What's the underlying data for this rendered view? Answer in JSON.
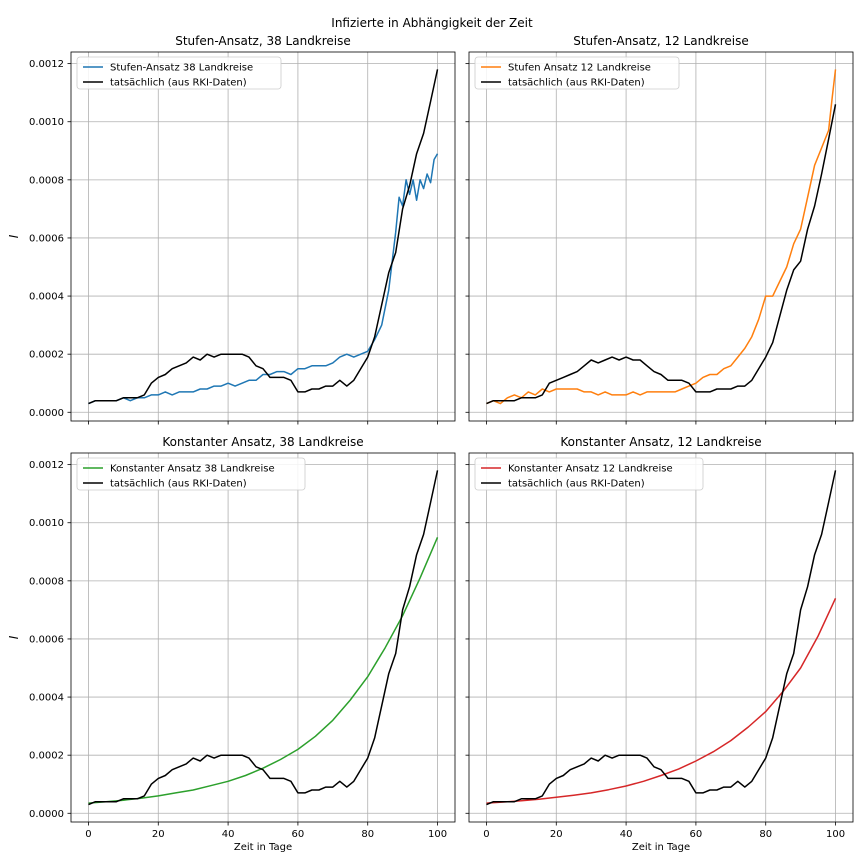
{
  "figure": {
    "suptitle": "Infizierte in Abhängigkeit der Zeit",
    "ylabel": "I",
    "xlabel": "Zeit in Tage"
  },
  "colors": {
    "blue": "#1f77b4",
    "orange": "#ff7f0e",
    "green": "#2ca02c",
    "red": "#d62728",
    "actual": "#000000"
  },
  "chart_data": [
    {
      "type": "line",
      "title": "Stufen-Ansatz, 38 Landkreise",
      "xlabel": "",
      "ylabel": "I",
      "xlim": [
        -5,
        105
      ],
      "ylim": [
        -3e-05,
        0.00124
      ],
      "xticks": [
        0,
        20,
        40,
        60,
        80,
        100
      ],
      "xtick_labels": [],
      "yticks": [
        0,
        0.0002,
        0.0004,
        0.0006,
        0.0008,
        0.001,
        0.0012
      ],
      "ytick_labels": [
        "0.0000",
        "0.0002",
        "0.0004",
        "0.0006",
        "0.0008",
        "0.0010",
        "0.0012"
      ],
      "grid": true,
      "legend": "top-left",
      "series": [
        {
          "name": "Stufen-Ansatz 38 Landkreise",
          "color": "#1f77b4",
          "x": [
            0,
            2,
            4,
            6,
            8,
            10,
            12,
            14,
            16,
            18,
            20,
            22,
            24,
            26,
            28,
            30,
            32,
            34,
            36,
            38,
            40,
            42,
            44,
            46,
            48,
            50,
            52,
            54,
            56,
            58,
            60,
            62,
            64,
            66,
            68,
            70,
            72,
            74,
            76,
            78,
            80,
            82,
            84,
            86,
            88,
            89,
            90,
            91,
            92,
            93,
            94,
            95,
            96,
            97,
            98,
            99,
            100
          ],
          "y": [
            3e-05,
            4e-05,
            4e-05,
            4e-05,
            4e-05,
            5e-05,
            4e-05,
            5e-05,
            5e-05,
            6e-05,
            6e-05,
            7e-05,
            6e-05,
            7e-05,
            7e-05,
            7e-05,
            8e-05,
            8e-05,
            9e-05,
            9e-05,
            0.0001,
            9e-05,
            0.0001,
            0.00011,
            0.00011,
            0.00013,
            0.00013,
            0.00014,
            0.00014,
            0.00013,
            0.00015,
            0.00015,
            0.00016,
            0.00016,
            0.00016,
            0.00017,
            0.00019,
            0.0002,
            0.00019,
            0.0002,
            0.00021,
            0.00025,
            0.0003,
            0.00042,
            0.00062,
            0.00074,
            0.00071,
            0.0008,
            0.00075,
            0.0008,
            0.00073,
            0.0008,
            0.00077,
            0.00082,
            0.00079,
            0.00087,
            0.00089
          ]
        },
        {
          "name": "tatsächlich (aus RKI-Daten)",
          "color": "#000000",
          "x": [
            0,
            2,
            4,
            6,
            8,
            10,
            12,
            14,
            16,
            18,
            20,
            22,
            24,
            26,
            28,
            30,
            32,
            34,
            36,
            38,
            40,
            42,
            44,
            46,
            48,
            50,
            52,
            54,
            56,
            58,
            60,
            62,
            64,
            66,
            68,
            70,
            72,
            74,
            76,
            78,
            80,
            82,
            84,
            86,
            88,
            90,
            92,
            94,
            96,
            98,
            100
          ],
          "y": [
            3e-05,
            4e-05,
            4e-05,
            4e-05,
            4e-05,
            5e-05,
            5e-05,
            5e-05,
            6e-05,
            0.0001,
            0.00012,
            0.00013,
            0.00015,
            0.00016,
            0.00017,
            0.00019,
            0.00018,
            0.0002,
            0.00019,
            0.0002,
            0.0002,
            0.0002,
            0.0002,
            0.00019,
            0.00016,
            0.00015,
            0.00012,
            0.00012,
            0.00012,
            0.00011,
            7e-05,
            7e-05,
            8e-05,
            8e-05,
            9e-05,
            9e-05,
            0.00011,
            9e-05,
            0.00011,
            0.00015,
            0.00019,
            0.00026,
            0.00037,
            0.00048,
            0.00055,
            0.0007,
            0.00078,
            0.00089,
            0.00096,
            0.00107,
            0.00118
          ]
        }
      ]
    },
    {
      "type": "line",
      "title": "Stufen-Ansatz, 12 Landkreise",
      "xlabel": "",
      "ylabel": "",
      "xlim": [
        -5,
        105
      ],
      "ylim": [
        -3e-05,
        0.00124
      ],
      "xticks": [
        0,
        20,
        40,
        60,
        80,
        100
      ],
      "xtick_labels": [],
      "yticks": [
        0,
        0.0002,
        0.0004,
        0.0006,
        0.0008,
        0.001,
        0.0012
      ],
      "ytick_labels": [],
      "grid": true,
      "legend": "top-left",
      "series": [
        {
          "name": "Stufen Ansatz 12 Landkreise",
          "color": "#ff7f0e",
          "x": [
            0,
            2,
            4,
            6,
            8,
            10,
            12,
            14,
            16,
            18,
            20,
            22,
            24,
            26,
            28,
            30,
            32,
            34,
            36,
            38,
            40,
            42,
            44,
            46,
            48,
            50,
            52,
            54,
            56,
            58,
            60,
            62,
            64,
            66,
            68,
            70,
            72,
            74,
            76,
            78,
            80,
            82,
            84,
            86,
            88,
            90,
            92,
            94,
            96,
            98,
            99,
            100
          ],
          "y": [
            3e-05,
            4e-05,
            3e-05,
            5e-05,
            6e-05,
            5e-05,
            7e-05,
            6e-05,
            8e-05,
            7e-05,
            8e-05,
            8e-05,
            8e-05,
            8e-05,
            7e-05,
            7e-05,
            6e-05,
            7e-05,
            6e-05,
            6e-05,
            6e-05,
            7e-05,
            6e-05,
            7e-05,
            7e-05,
            7e-05,
            7e-05,
            7e-05,
            8e-05,
            9e-05,
            0.0001,
            0.00012,
            0.00013,
            0.00013,
            0.00015,
            0.00016,
            0.00019,
            0.00022,
            0.00026,
            0.00032,
            0.0004,
            0.0004,
            0.00045,
            0.0005,
            0.00058,
            0.00063,
            0.00074,
            0.00085,
            0.00091,
            0.00097,
            0.00108,
            0.00118
          ]
        },
        {
          "name": "tatsächlich (aus RKI-Daten)",
          "color": "#000000",
          "x": [
            0,
            2,
            4,
            6,
            8,
            10,
            12,
            14,
            16,
            18,
            20,
            22,
            24,
            26,
            28,
            30,
            32,
            34,
            36,
            38,
            40,
            42,
            44,
            46,
            48,
            50,
            52,
            54,
            56,
            58,
            60,
            62,
            64,
            66,
            68,
            70,
            72,
            74,
            76,
            78,
            80,
            82,
            84,
            86,
            88,
            90,
            92,
            94,
            96,
            98,
            100
          ],
          "y": [
            3e-05,
            4e-05,
            4e-05,
            4e-05,
            4e-05,
            5e-05,
            5e-05,
            5e-05,
            6e-05,
            0.0001,
            0.00011,
            0.00012,
            0.00013,
            0.00014,
            0.00016,
            0.00018,
            0.00017,
            0.00018,
            0.00019,
            0.00018,
            0.00019,
            0.00018,
            0.00018,
            0.00016,
            0.00014,
            0.00013,
            0.00011,
            0.00011,
            0.00011,
            0.0001,
            7e-05,
            7e-05,
            7e-05,
            8e-05,
            8e-05,
            8e-05,
            9e-05,
            9e-05,
            0.00011,
            0.00015,
            0.00019,
            0.00024,
            0.00033,
            0.00042,
            0.00049,
            0.00052,
            0.00063,
            0.00071,
            0.00082,
            0.00094,
            0.00106
          ]
        }
      ]
    },
    {
      "type": "line",
      "title": "Konstanter Ansatz, 38 Landkreise",
      "xlabel": "Zeit in Tage",
      "ylabel": "I",
      "xlim": [
        -5,
        105
      ],
      "ylim": [
        -3e-05,
        0.00124
      ],
      "xticks": [
        0,
        20,
        40,
        60,
        80,
        100
      ],
      "xtick_labels": [
        "0",
        "20",
        "40",
        "60",
        "80",
        "100"
      ],
      "yticks": [
        0,
        0.0002,
        0.0004,
        0.0006,
        0.0008,
        0.001,
        0.0012
      ],
      "ytick_labels": [
        "0.0000",
        "0.0002",
        "0.0004",
        "0.0006",
        "0.0008",
        "0.0010",
        "0.0012"
      ],
      "grid": true,
      "legend": "top-left",
      "series": [
        {
          "name": "Konstanter Ansatz 38 Landkreise",
          "color": "#2ca02c",
          "x": [
            0,
            5,
            10,
            15,
            20,
            25,
            30,
            35,
            40,
            45,
            50,
            55,
            60,
            65,
            70,
            75,
            80,
            85,
            90,
            95,
            100
          ],
          "y": [
            3.5e-05,
            4e-05,
            4.5e-05,
            5.2e-05,
            6e-05,
            7e-05,
            8e-05,
            9.5e-05,
            0.00011,
            0.00013,
            0.000155,
            0.000185,
            0.00022,
            0.000265,
            0.00032,
            0.00039,
            0.00047,
            0.00057,
            0.00068,
            0.00081,
            0.00095
          ]
        },
        {
          "name": "tatsächlich (aus RKI-Daten)",
          "color": "#000000",
          "x": [
            0,
            2,
            4,
            6,
            8,
            10,
            12,
            14,
            16,
            18,
            20,
            22,
            24,
            26,
            28,
            30,
            32,
            34,
            36,
            38,
            40,
            42,
            44,
            46,
            48,
            50,
            52,
            54,
            56,
            58,
            60,
            62,
            64,
            66,
            68,
            70,
            72,
            74,
            76,
            78,
            80,
            82,
            84,
            86,
            88,
            90,
            92,
            94,
            96,
            98,
            100
          ],
          "y": [
            3e-05,
            4e-05,
            4e-05,
            4e-05,
            4e-05,
            5e-05,
            5e-05,
            5e-05,
            6e-05,
            0.0001,
            0.00012,
            0.00013,
            0.00015,
            0.00016,
            0.00017,
            0.00019,
            0.00018,
            0.0002,
            0.00019,
            0.0002,
            0.0002,
            0.0002,
            0.0002,
            0.00019,
            0.00016,
            0.00015,
            0.00012,
            0.00012,
            0.00012,
            0.00011,
            7e-05,
            7e-05,
            8e-05,
            8e-05,
            9e-05,
            9e-05,
            0.00011,
            9e-05,
            0.00011,
            0.00015,
            0.00019,
            0.00026,
            0.00037,
            0.00048,
            0.00055,
            0.0007,
            0.00078,
            0.00089,
            0.00096,
            0.00107,
            0.00118
          ]
        }
      ]
    },
    {
      "type": "line",
      "title": "Konstanter Ansatz, 12 Landkreise",
      "xlabel": "Zeit in Tage",
      "ylabel": "",
      "xlim": [
        -5,
        105
      ],
      "ylim": [
        -3e-05,
        0.00124
      ],
      "xticks": [
        0,
        20,
        40,
        60,
        80,
        100
      ],
      "xtick_labels": [
        "0",
        "20",
        "40",
        "60",
        "80",
        "100"
      ],
      "yticks": [
        0,
        0.0002,
        0.0004,
        0.0006,
        0.0008,
        0.001,
        0.0012
      ],
      "ytick_labels": [],
      "grid": true,
      "legend": "top-left",
      "series": [
        {
          "name": "Konstanter Ansatz 12 Landkreise",
          "color": "#d62728",
          "x": [
            0,
            5,
            10,
            15,
            20,
            25,
            30,
            35,
            40,
            45,
            50,
            55,
            60,
            65,
            70,
            75,
            80,
            85,
            90,
            95,
            100
          ],
          "y": [
            3.5e-05,
            3.9e-05,
            4.3e-05,
            4.8e-05,
            5.5e-05,
            6.2e-05,
            7e-05,
            8.1e-05,
            9.4e-05,
            0.00011,
            0.00013,
            0.000152,
            0.00018,
            0.000212,
            0.00025,
            0.000297,
            0.00035,
            0.00042,
            0.0005,
            0.00061,
            0.00074
          ]
        },
        {
          "name": "tatsächlich (aus RKI-Daten)",
          "color": "#000000",
          "x": [
            0,
            2,
            4,
            6,
            8,
            10,
            12,
            14,
            16,
            18,
            20,
            22,
            24,
            26,
            28,
            30,
            32,
            34,
            36,
            38,
            40,
            42,
            44,
            46,
            48,
            50,
            52,
            54,
            56,
            58,
            60,
            62,
            64,
            66,
            68,
            70,
            72,
            74,
            76,
            78,
            80,
            82,
            84,
            86,
            88,
            90,
            92,
            94,
            96,
            98,
            100
          ],
          "y": [
            3e-05,
            4e-05,
            4e-05,
            4e-05,
            4e-05,
            5e-05,
            5e-05,
            5e-05,
            6e-05,
            0.0001,
            0.00012,
            0.00013,
            0.00015,
            0.00016,
            0.00017,
            0.00019,
            0.00018,
            0.0002,
            0.00019,
            0.0002,
            0.0002,
            0.0002,
            0.0002,
            0.00019,
            0.00016,
            0.00015,
            0.00012,
            0.00012,
            0.00012,
            0.00011,
            7e-05,
            7e-05,
            8e-05,
            8e-05,
            9e-05,
            9e-05,
            0.00011,
            9e-05,
            0.00011,
            0.00015,
            0.00019,
            0.00026,
            0.00037,
            0.00048,
            0.00055,
            0.0007,
            0.00078,
            0.00089,
            0.00096,
            0.00107,
            0.00118
          ]
        }
      ]
    }
  ]
}
